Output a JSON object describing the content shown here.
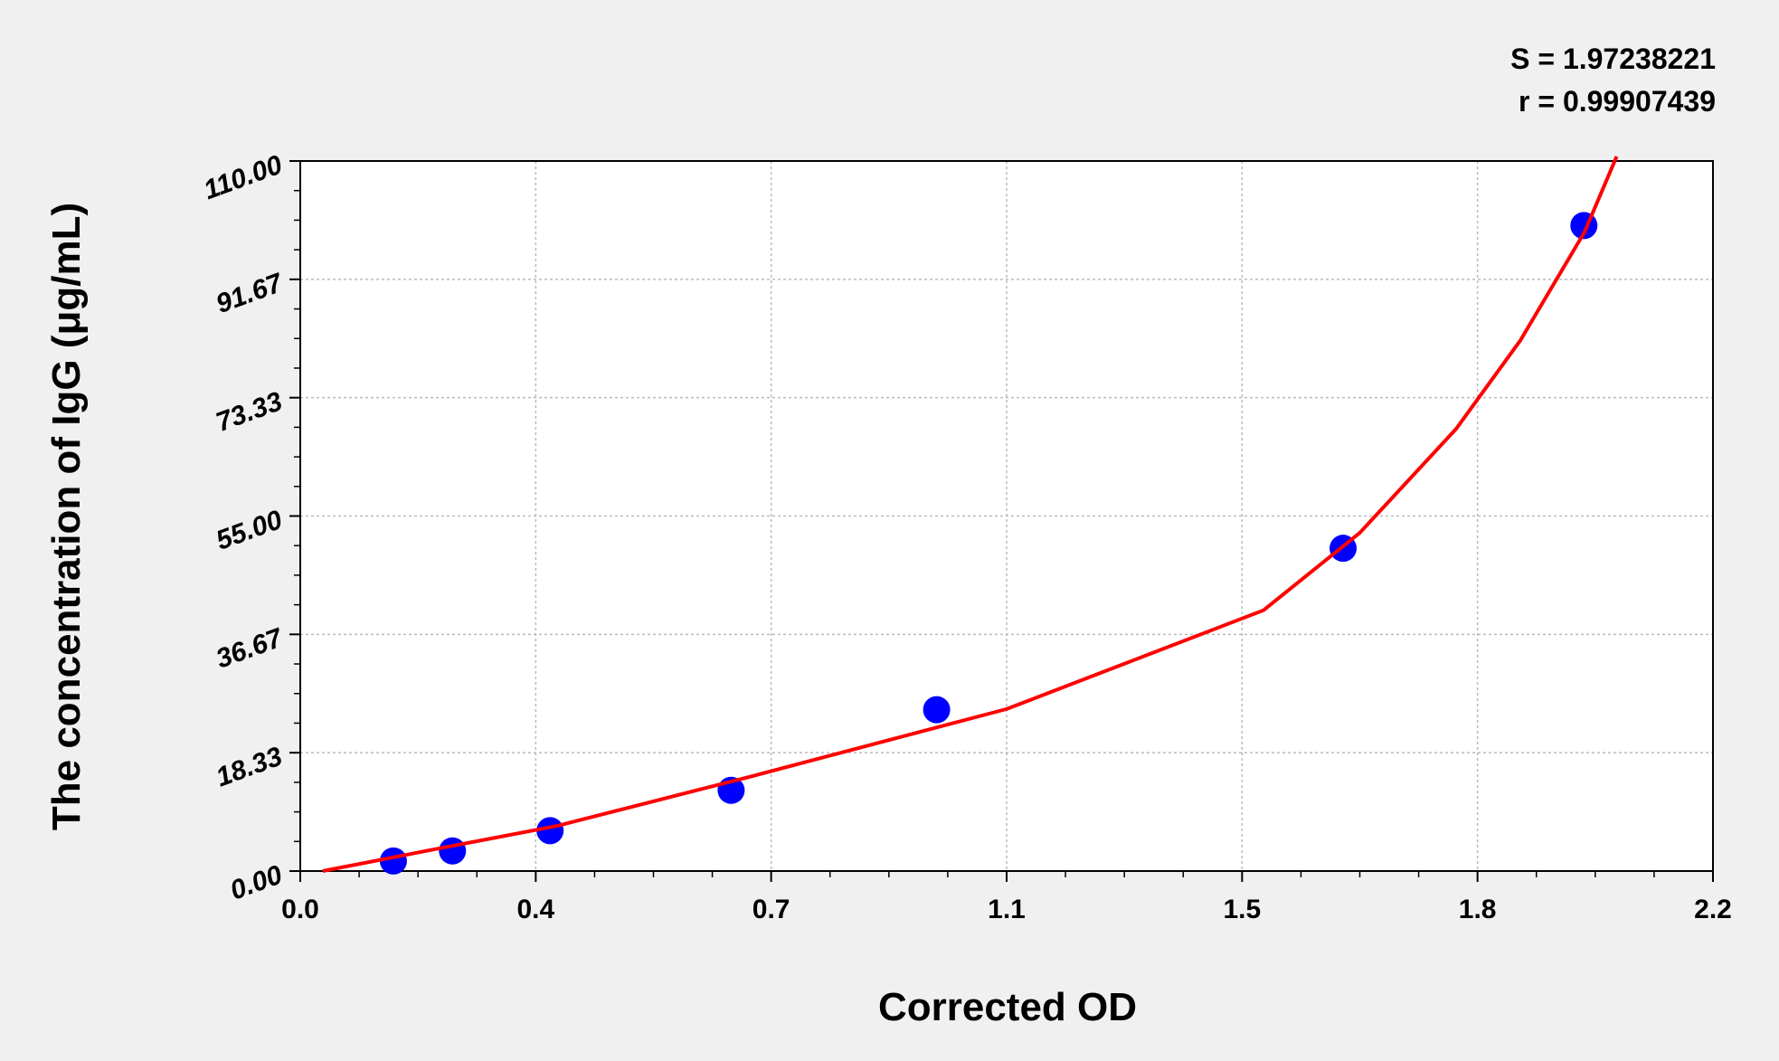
{
  "chart_data": {
    "type": "scatter",
    "annotations": [
      "S = 1.97238221",
      "r = 0.99907439"
    ],
    "xlabel": "Corrected OD",
    "ylabel": "The concentration of IgG (μg/mL)",
    "xlim": [
      0,
      2.2
    ],
    "xticks": [
      {
        "value": 0,
        "label": "0.0"
      },
      {
        "value": 0.3667,
        "label": "0.4"
      },
      {
        "value": 0.7333,
        "label": "0.7"
      },
      1.1,
      {
        "value": 1.4667,
        "label": "1.5"
      },
      {
        "value": 1.8333,
        "label": "1.8"
      },
      2.2
    ],
    "ylim": [
      0,
      110
    ],
    "yticks": [
      {
        "value": 0,
        "label": "0.00"
      },
      {
        "value": 18.333,
        "label": "18.33"
      },
      {
        "value": 36.667,
        "label": "36.67"
      },
      {
        "value": 55,
        "label": "55.00"
      },
      {
        "value": 73.333,
        "label": "73.33"
      },
      {
        "value": 91.667,
        "label": "91.67"
      },
      {
        "value": 110,
        "label": "110.00"
      }
    ],
    "grid": true,
    "series": [
      {
        "type": "scatter",
        "color": "#0000ff",
        "x": [
          0.145,
          0.237,
          0.389,
          0.671,
          0.991,
          1.624,
          1.999
        ],
        "values": [
          1.56,
          3.12,
          6.25,
          12.5,
          25,
          50,
          100
        ]
      },
      {
        "type": "line",
        "color": "#ff0000",
        "x": [
          0.035,
          0.2,
          0.4,
          0.7,
          1.1,
          1.5,
          1.65,
          1.8,
          1.9,
          2.0,
          2.05
        ],
        "values": [
          0,
          3.2,
          7.0,
          14.6,
          25.1,
          40.4,
          52.4,
          68.5,
          82.2,
          99,
          110.7
        ]
      }
    ]
  }
}
